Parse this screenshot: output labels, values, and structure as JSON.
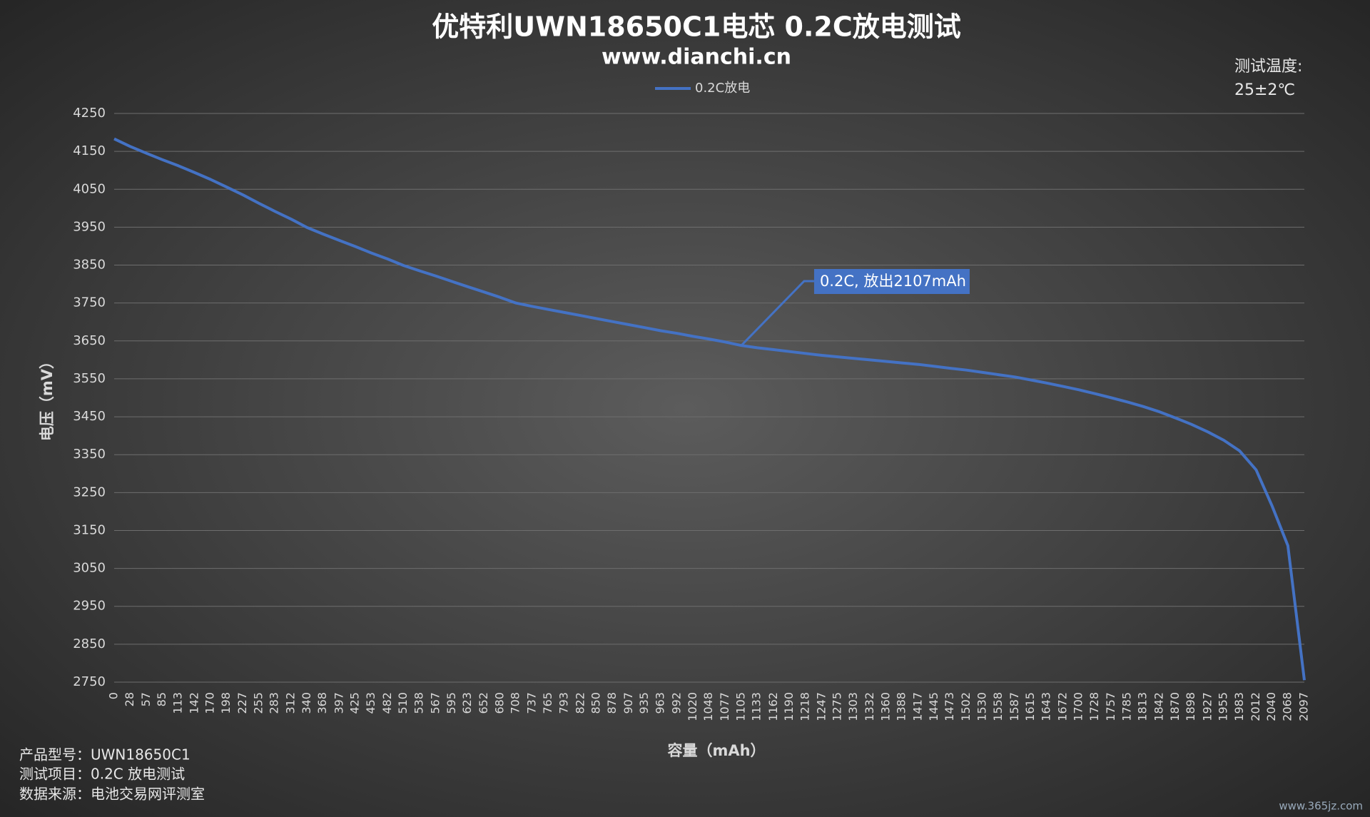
{
  "chart_data": {
    "type": "line",
    "title": "优特利UWN18650C1电芯 0.2C放电测试",
    "subtitle": "www.dianchi.cn",
    "x_label": "容量（mAh）",
    "y_label": "电压（mV）",
    "temperature_note": [
      "测试温度:",
      "25±2℃"
    ],
    "annotation": "0.2C, 放出2107mAh",
    "notes": [
      "产品型号：UWN18650C1",
      "测试项目：0.2C 放电测试",
      "数据来源：电池交易网评测室"
    ],
    "watermark": "www.365jz.com",
    "legend_position": "top",
    "grid": true,
    "x": [
      0,
      28,
      57,
      85,
      113,
      142,
      170,
      198,
      227,
      255,
      283,
      312,
      340,
      368,
      397,
      425,
      453,
      482,
      510,
      538,
      567,
      595,
      623,
      652,
      680,
      708,
      737,
      765,
      793,
      822,
      850,
      878,
      907,
      935,
      963,
      992,
      1020,
      1048,
      1077,
      1105,
      1133,
      1162,
      1190,
      1218,
      1247,
      1275,
      1303,
      1332,
      1360,
      1388,
      1417,
      1445,
      1473,
      1502,
      1530,
      1558,
      1587,
      1615,
      1643,
      1672,
      1700,
      1728,
      1757,
      1785,
      1813,
      1842,
      1870,
      1898,
      1927,
      1955,
      1983,
      2012,
      2040,
      2068,
      2097
    ],
    "xticks": [
      0,
      28,
      57,
      85,
      113,
      142,
      170,
      198,
      227,
      255,
      283,
      312,
      340,
      368,
      397,
      425,
      453,
      482,
      510,
      538,
      567,
      595,
      623,
      652,
      680,
      708,
      737,
      765,
      793,
      822,
      850,
      878,
      907,
      935,
      963,
      992,
      1020,
      1048,
      1077,
      1105,
      1133,
      1162,
      1190,
      1218,
      1247,
      1275,
      1303,
      1332,
      1360,
      1388,
      1417,
      1445,
      1473,
      1502,
      1530,
      1558,
      1587,
      1615,
      1643,
      1672,
      1700,
      1728,
      1757,
      1785,
      1813,
      1842,
      1870,
      1898,
      1927,
      1955,
      1983,
      2012,
      2040,
      2068,
      2097
    ],
    "xlim": [
      0,
      2097
    ],
    "ylim": [
      2750,
      4250
    ],
    "yticks": [
      2750,
      2850,
      2950,
      3050,
      3150,
      3250,
      3350,
      3450,
      3550,
      3650,
      3750,
      3850,
      3950,
      4050,
      4150,
      4250
    ],
    "series": [
      {
        "name": "0.2C放电",
        "color": "#4472c4",
        "values": [
          4183,
          4163,
          4145,
          4128,
          4112,
          4094,
          4076,
          4056,
          4035,
          4013,
          3992,
          3971,
          3949,
          3932,
          3915,
          3899,
          3882,
          3866,
          3849,
          3835,
          3821,
          3807,
          3793,
          3779,
          3765,
          3750,
          3741,
          3733,
          3725,
          3717,
          3709,
          3701,
          3693,
          3685,
          3677,
          3670,
          3662,
          3655,
          3647,
          3638,
          3632,
          3627,
          3622,
          3617,
          3612,
          3608,
          3604,
          3600,
          3596,
          3592,
          3588,
          3583,
          3578,
          3573,
          3567,
          3561,
          3555,
          3547,
          3539,
          3530,
          3521,
          3511,
          3500,
          3489,
          3477,
          3463,
          3447,
          3430,
          3410,
          3388,
          3360,
          3310,
          3215,
          3110,
          2755
        ]
      }
    ],
    "annotation_index": 39
  }
}
